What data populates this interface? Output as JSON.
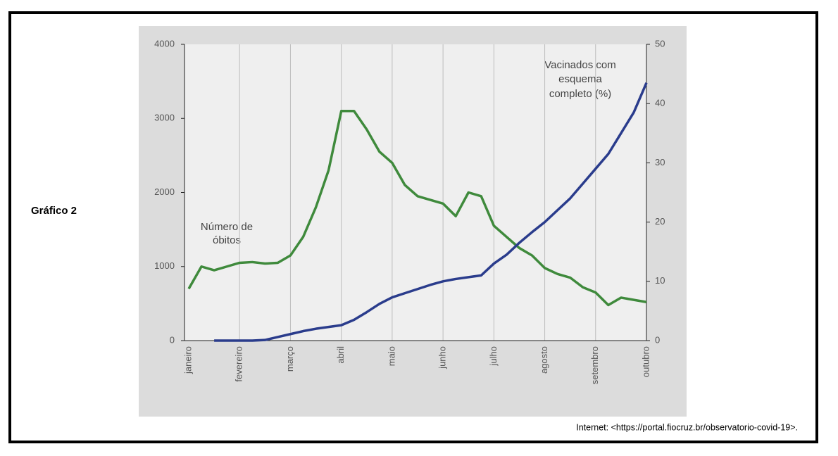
{
  "figure_label": "Gráfico 2",
  "source": "Internet: <https://portal.fiocruz.br/observatorio-covid-19>.",
  "chart_data": {
    "type": "line",
    "categories": [
      "janeiro",
      null,
      null,
      null,
      "fevereiro",
      null,
      null,
      null,
      "março",
      null,
      null,
      null,
      "abril",
      null,
      null,
      null,
      "maio",
      null,
      null,
      null,
      "junho",
      null,
      null,
      null,
      "julho",
      null,
      null,
      null,
      "agosto",
      null,
      null,
      null,
      "setembro",
      null,
      null,
      null,
      "outubro"
    ],
    "series": [
      {
        "name": "Número de óbitos",
        "color": "#3f8a3c",
        "axis": "y",
        "values": [
          700,
          1000,
          950,
          1000,
          1050,
          1060,
          1040,
          1050,
          1150,
          1400,
          1800,
          2300,
          3100,
          3100,
          2850,
          2550,
          2400,
          2100,
          1950,
          1900,
          1850,
          1680,
          2000,
          1950,
          1550,
          1400,
          1250,
          1150,
          980,
          900,
          850,
          720,
          650,
          480,
          580,
          550,
          520
        ]
      },
      {
        "name": "Vacinados com esquema completo (%)",
        "color": "#2a3c8c",
        "axis": "y2",
        "values": [
          null,
          null,
          0,
          0,
          0,
          0,
          0.1,
          0.6,
          1.1,
          1.6,
          2.0,
          2.3,
          2.6,
          3.5,
          4.8,
          6.2,
          7.3,
          8.0,
          8.7,
          9.4,
          10.0,
          10.4,
          10.7,
          11.0,
          13.0,
          14.5,
          16.5,
          18.3,
          20.0,
          22.0,
          24.0,
          26.5,
          29.0,
          31.5,
          35.0,
          38.5,
          43.5
        ]
      }
    ],
    "annotations": [
      {
        "lines": [
          "Número de",
          "óbitos"
        ]
      },
      {
        "lines": [
          "Vacinados com",
          "esquema",
          "completo  (%)"
        ]
      }
    ],
    "ylim": [
      0,
      4000
    ],
    "yticks": [
      0,
      1000,
      2000,
      3000,
      4000
    ],
    "y2lim": [
      0,
      50
    ],
    "y2ticks": [
      0,
      10,
      20,
      30,
      40,
      50
    ],
    "grid": true
  }
}
